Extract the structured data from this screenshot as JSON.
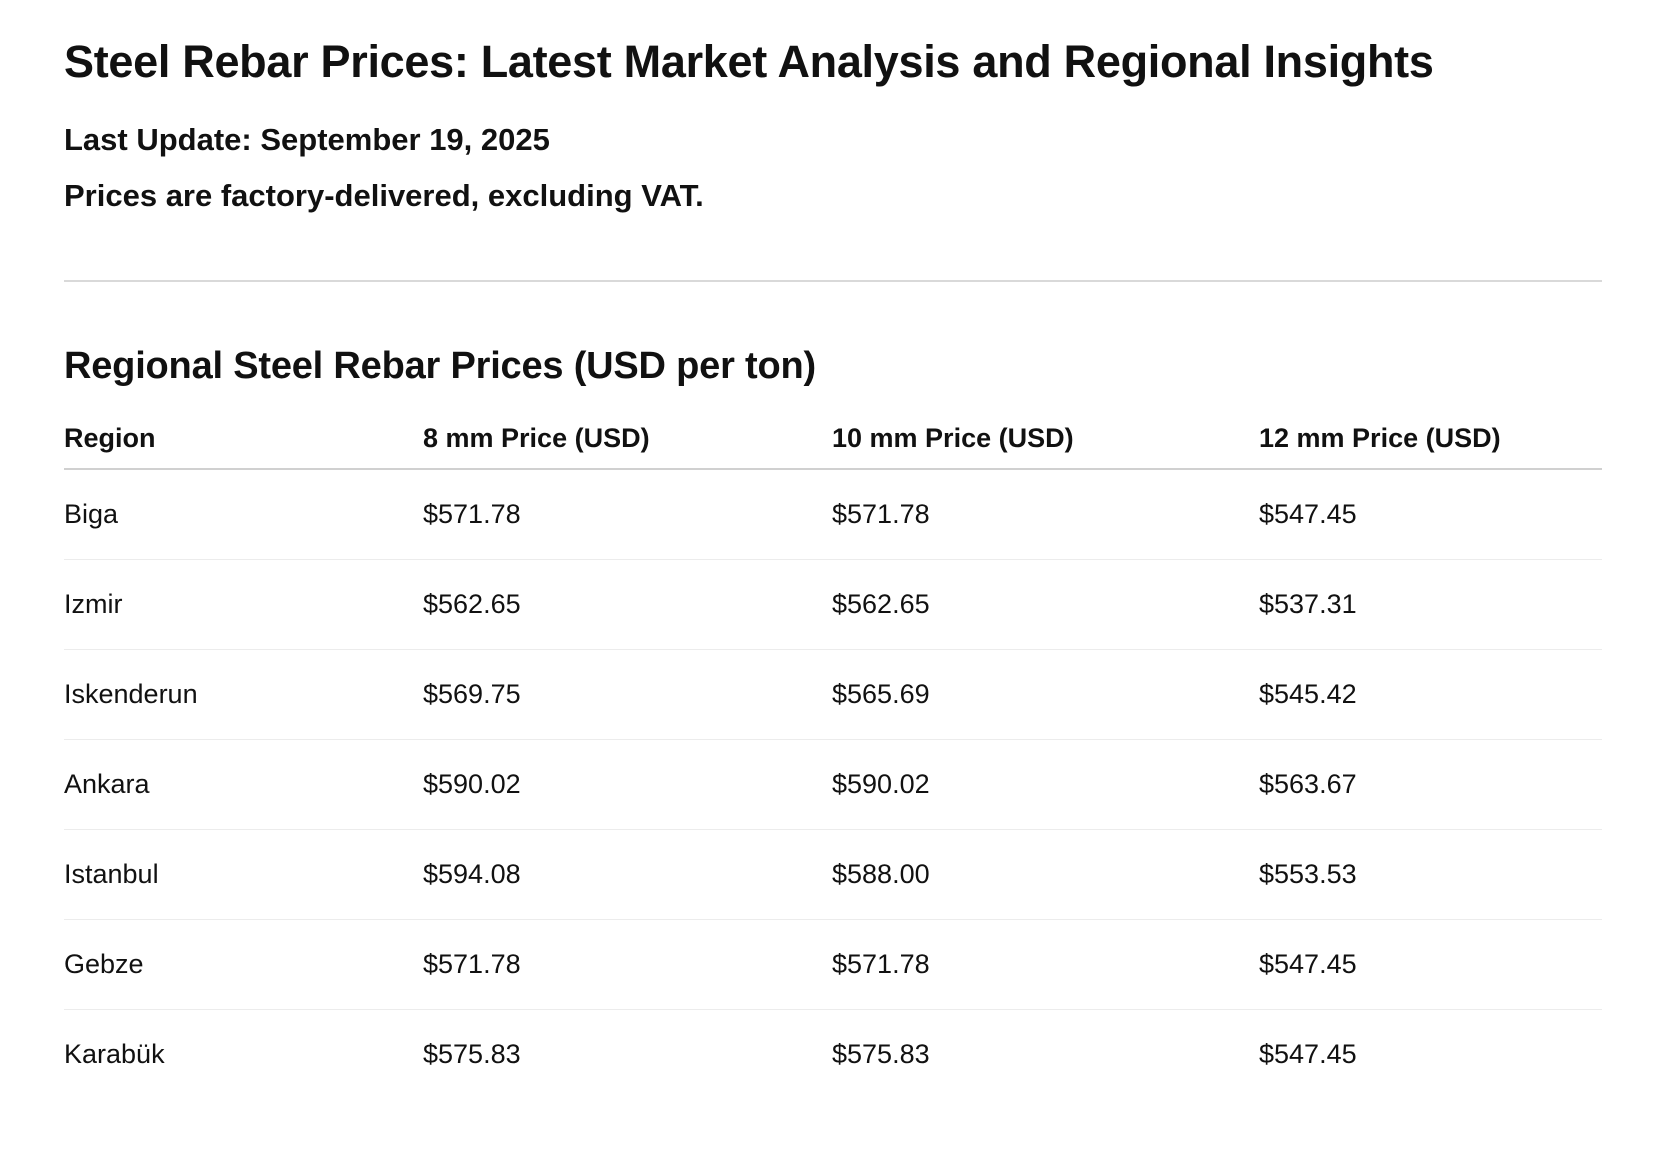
{
  "header": {
    "title": "Steel Rebar Prices: Latest Market Analysis and Regional Insights",
    "last_update": "Last Update: September 19, 2025",
    "note": "Prices are factory-delivered, excluding VAT."
  },
  "section": {
    "title": "Regional Steel Rebar Prices (USD per ton)"
  },
  "table": {
    "columns": [
      "Region",
      "8 mm Price (USD)",
      "10 mm Price (USD)",
      "12 mm Price (USD)"
    ],
    "rows": [
      [
        "Biga",
        "$571.78",
        "$571.78",
        "$547.45"
      ],
      [
        "Izmir",
        "$562.65",
        "$562.65",
        "$537.31"
      ],
      [
        "Iskenderun",
        "$569.75",
        "$565.69",
        "$545.42"
      ],
      [
        "Ankara",
        "$590.02",
        "$590.02",
        "$563.67"
      ],
      [
        "Istanbul",
        "$594.08",
        "$588.00",
        "$553.53"
      ],
      [
        "Gebze",
        "$571.78",
        "$571.78",
        "$547.45"
      ],
      [
        "Karabük",
        "$575.83",
        "$575.83",
        "$547.45"
      ]
    ]
  }
}
